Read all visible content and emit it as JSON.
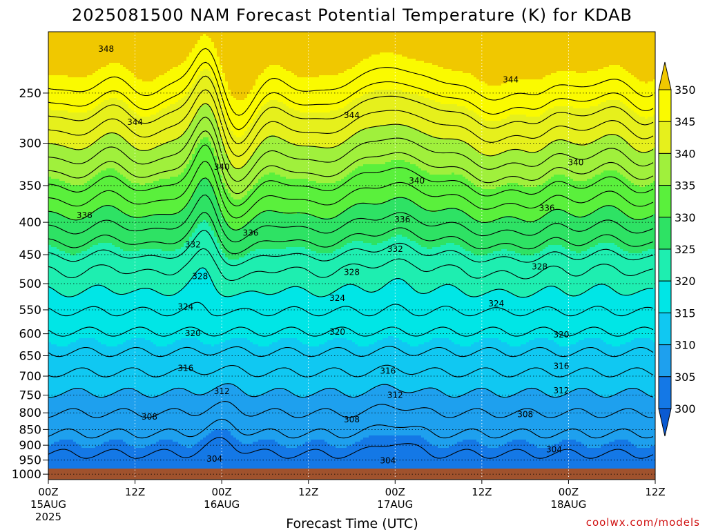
{
  "chart_data": {
    "type": "heatmap",
    "title": "2025081500 NAM Forecast Potential Temperature (K) for KDAB",
    "xlabel": "Forecast Time (UTC)",
    "ylabel": "",
    "credit": "coolwx.com/models",
    "y_axis": {
      "scale": "log-pressure",
      "ticks": [
        250,
        300,
        350,
        400,
        450,
        500,
        550,
        600,
        650,
        700,
        750,
        800,
        850,
        900,
        950,
        1000
      ],
      "range_hPa": [
        200,
        1020
      ]
    },
    "x_axis": {
      "range_hours": [
        0,
        84
      ],
      "ticks": [
        {
          "hour": 0,
          "label": "00Z",
          "date": "15AUG",
          "year": "2025"
        },
        {
          "hour": 12,
          "label": "12Z",
          "date": "",
          "year": ""
        },
        {
          "hour": 24,
          "label": "00Z",
          "date": "16AUG",
          "year": ""
        },
        {
          "hour": 36,
          "label": "12Z",
          "date": "",
          "year": ""
        },
        {
          "hour": 48,
          "label": "00Z",
          "date": "17AUG",
          "year": ""
        },
        {
          "hour": 60,
          "label": "12Z",
          "date": "",
          "year": ""
        },
        {
          "hour": 72,
          "label": "00Z",
          "date": "18AUG",
          "year": ""
        },
        {
          "hour": 84,
          "label": "12Z",
          "date": "",
          "year": ""
        }
      ]
    },
    "colorbar": {
      "levels": [
        300,
        305,
        310,
        315,
        320,
        325,
        330,
        335,
        340,
        345,
        350
      ],
      "colors": [
        "#0a5ad2",
        "#1478e6",
        "#1ea0ee",
        "#10c8f2",
        "#00e6e6",
        "#1eeeb0",
        "#2ee264",
        "#5af03c",
        "#a0f03c",
        "#e6f01c",
        "#fafa00",
        "#f0c800"
      ],
      "extend": "both"
    },
    "contour_levels": [
      304,
      306,
      308,
      310,
      312,
      314,
      316,
      318,
      320,
      322,
      324,
      326,
      328,
      330,
      332,
      334,
      336,
      338,
      340,
      342,
      344,
      346,
      348
    ],
    "contour_labels": [
      {
        "value": "348",
        "hour": 8,
        "p": 213
      },
      {
        "value": "344",
        "hour": 12,
        "p": 278
      },
      {
        "value": "344",
        "hour": 42,
        "p": 271
      },
      {
        "value": "344",
        "hour": 64,
        "p": 238
      },
      {
        "value": "340",
        "hour": 24,
        "p": 327
      },
      {
        "value": "340",
        "hour": 51,
        "p": 344
      },
      {
        "value": "340",
        "hour": 73,
        "p": 322
      },
      {
        "value": "336",
        "hour": 5,
        "p": 390
      },
      {
        "value": "336",
        "hour": 28,
        "p": 416
      },
      {
        "value": "336",
        "hour": 49,
        "p": 396
      },
      {
        "value": "336",
        "hour": 69,
        "p": 380
      },
      {
        "value": "332",
        "hour": 20,
        "p": 434
      },
      {
        "value": "332",
        "hour": 48,
        "p": 441
      },
      {
        "value": "328",
        "hour": 21,
        "p": 487
      },
      {
        "value": "328",
        "hour": 42,
        "p": 480
      },
      {
        "value": "328",
        "hour": 68,
        "p": 470
      },
      {
        "value": "324",
        "hour": 19,
        "p": 544
      },
      {
        "value": "324",
        "hour": 40,
        "p": 527
      },
      {
        "value": "324",
        "hour": 62,
        "p": 538
      },
      {
        "value": "320",
        "hour": 20,
        "p": 599
      },
      {
        "value": "320",
        "hour": 40,
        "p": 596
      },
      {
        "value": "320",
        "hour": 71,
        "p": 602
      },
      {
        "value": "316",
        "hour": 19,
        "p": 680
      },
      {
        "value": "316",
        "hour": 47,
        "p": 687
      },
      {
        "value": "316",
        "hour": 71,
        "p": 675
      },
      {
        "value": "312",
        "hour": 24,
        "p": 740
      },
      {
        "value": "312",
        "hour": 48,
        "p": 750
      },
      {
        "value": "312",
        "hour": 71,
        "p": 738
      },
      {
        "value": "308",
        "hour": 14,
        "p": 812
      },
      {
        "value": "308",
        "hour": 42,
        "p": 820
      },
      {
        "value": "308",
        "hour": 66,
        "p": 805
      },
      {
        "value": "304",
        "hour": 23,
        "p": 946
      },
      {
        "value": "304",
        "hour": 47,
        "p": 952
      },
      {
        "value": "304",
        "hour": 70,
        "p": 915
      }
    ]
  }
}
